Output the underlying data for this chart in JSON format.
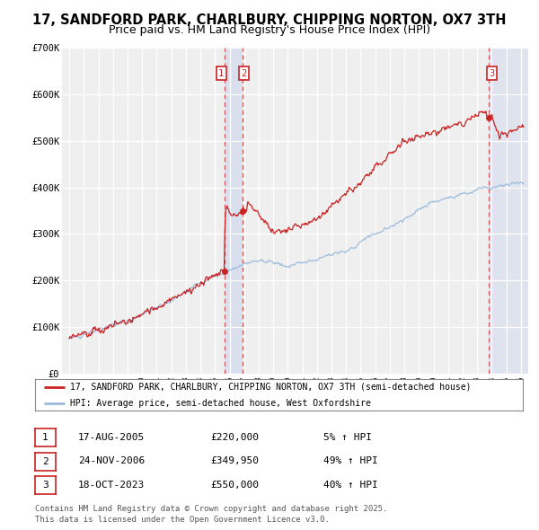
{
  "title": "17, SANDFORD PARK, CHARLBURY, CHIPPING NORTON, OX7 3TH",
  "subtitle": "Price paid vs. HM Land Registry's House Price Index (HPI)",
  "title_fontsize": 10.5,
  "subtitle_fontsize": 9,
  "background_color": "#ffffff",
  "plot_bg_color": "#efefef",
  "grid_color": "#ffffff",
  "hpi_color": "#99bbdd",
  "price_color": "#cc2222",
  "ylim": [
    0,
    700000
  ],
  "yticks": [
    0,
    100000,
    200000,
    300000,
    400000,
    500000,
    600000,
    700000
  ],
  "ytick_labels": [
    "£0",
    "£100K",
    "£200K",
    "£300K",
    "£400K",
    "£500K",
    "£600K",
    "£700K"
  ],
  "xmin": 1994.5,
  "xmax": 2026.5,
  "transaction1": {
    "date_num": 2005.63,
    "price": 220000,
    "label": "1"
  },
  "transaction2": {
    "date_num": 2006.9,
    "price": 349950,
    "label": "2"
  },
  "transaction3": {
    "date_num": 2023.79,
    "price": 550000,
    "label": "3"
  },
  "legend_property": "17, SANDFORD PARK, CHARLBURY, CHIPPING NORTON, OX7 3TH (semi-detached house)",
  "legend_hpi": "HPI: Average price, semi-detached house, West Oxfordshire",
  "table_rows": [
    {
      "num": "1",
      "date": "17-AUG-2005",
      "price": "£220,000",
      "change": "5% ↑ HPI"
    },
    {
      "num": "2",
      "date": "24-NOV-2006",
      "price": "£349,950",
      "change": "49% ↑ HPI"
    },
    {
      "num": "3",
      "date": "18-OCT-2023",
      "price": "£550,000",
      "change": "40% ↑ HPI"
    }
  ],
  "footer": "Contains HM Land Registry data © Crown copyright and database right 2025.\nThis data is licensed under the Open Government Licence v3.0.",
  "shade1_start": 2005.63,
  "shade1_end": 2006.9,
  "shade3_start": 2023.79,
  "shade3_end": 2026.5
}
